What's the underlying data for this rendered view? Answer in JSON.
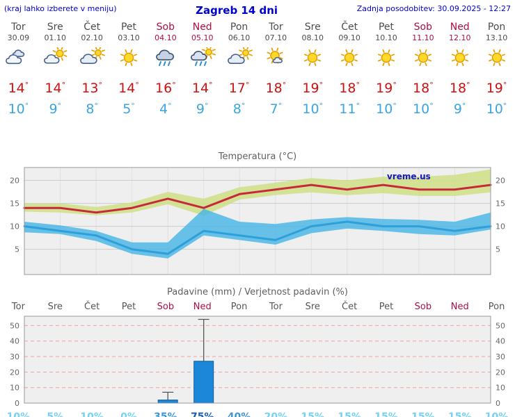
{
  "header": {
    "note": "(kraj lahko izberete v meniju)",
    "title": "Zagreb 14 dni",
    "updated": "Zadnja posodobitev: 30.09.2025 - 12:27"
  },
  "colors": {
    "accent_blue": "#0000cd",
    "temp_max_text": "#cc1111",
    "temp_min_text": "#3aa5e0",
    "weekend": "#b00d3f",
    "prob_low": "#74d2f0",
    "prob_mid": "#3d96d2",
    "prob_high": "#1a5cb0",
    "bar": "#1c86d8",
    "band_max": "#cfe08a",
    "band_min": "#45b4e6",
    "line_max": "#c62a39",
    "line_min": "#2e9fd8"
  },
  "days": [
    {
      "name": "Tor",
      "date": "30.09",
      "icon": "cloudy",
      "tmax": 14,
      "tmin": 10,
      "weekend": false,
      "precip_prob": 10
    },
    {
      "name": "Sre",
      "date": "01.10",
      "icon": "partly-cloudy",
      "tmax": 14,
      "tmin": 9,
      "weekend": false,
      "precip_prob": 5
    },
    {
      "name": "Čet",
      "date": "02.10",
      "icon": "mostly-cloudy",
      "tmax": 13,
      "tmin": 8,
      "weekend": false,
      "precip_prob": 10
    },
    {
      "name": "Pet",
      "date": "03.10",
      "icon": "sunny",
      "tmax": 14,
      "tmin": 5,
      "weekend": false,
      "precip_prob": 0
    },
    {
      "name": "Sob",
      "date": "04.10",
      "icon": "rain",
      "tmax": 16,
      "tmin": 4,
      "weekend": true,
      "precip_prob": 35
    },
    {
      "name": "Ned",
      "date": "05.10",
      "icon": "sun-rain",
      "tmax": 14,
      "tmin": 9,
      "weekend": true,
      "precip_prob": 75
    },
    {
      "name": "Pon",
      "date": "06.10",
      "icon": "mostly-cloudy",
      "tmax": 17,
      "tmin": 8,
      "weekend": false,
      "precip_prob": 40
    },
    {
      "name": "Tor",
      "date": "07.10",
      "icon": "mostly-sunny",
      "tmax": 18,
      "tmin": 7,
      "weekend": false,
      "precip_prob": 20
    },
    {
      "name": "Sre",
      "date": "08.10",
      "icon": "sunny",
      "tmax": 19,
      "tmin": 10,
      "weekend": false,
      "precip_prob": 15
    },
    {
      "name": "Čet",
      "date": "09.10",
      "icon": "sunny",
      "tmax": 18,
      "tmin": 11,
      "weekend": false,
      "precip_prob": 15
    },
    {
      "name": "Pet",
      "date": "10.10",
      "icon": "sunny",
      "tmax": 19,
      "tmin": 10,
      "weekend": false,
      "precip_prob": 15
    },
    {
      "name": "Sob",
      "date": "11.10",
      "icon": "sunny",
      "tmax": 18,
      "tmin": 10,
      "weekend": true,
      "precip_prob": 15
    },
    {
      "name": "Ned",
      "date": "12.10",
      "icon": "sunny",
      "tmax": 18,
      "tmin": 9,
      "weekend": true,
      "precip_prob": 15
    },
    {
      "name": "Pon",
      "date": "13.10",
      "icon": "sunny",
      "tmax": 19,
      "tmin": 10,
      "weekend": false,
      "precip_prob": 10
    }
  ],
  "chart_data": [
    {
      "type": "line",
      "title": "Temperatura (°C)",
      "watermark": "vreme.us",
      "categories": [
        "Tor 30.09",
        "Sre 01.10",
        "Čet 02.10",
        "Pet 03.10",
        "Sob 04.10",
        "Ned 05.10",
        "Pon 06.10",
        "Tor 07.10",
        "Sre 08.10",
        "Čet 09.10",
        "Pet 10.10",
        "Sob 11.10",
        "Ned 12.10",
        "Pon 13.10"
      ],
      "ylim": [
        -0.5,
        22.8
      ],
      "yticks": [
        5,
        10,
        15,
        20
      ],
      "grid": true,
      "band_colors": {
        "max": "#cfe08a",
        "min": "#45b4e6"
      },
      "series": [
        {
          "name": "tmax",
          "color": "#c62a39",
          "values": [
            14,
            14,
            13,
            14,
            16,
            14,
            17,
            18,
            19,
            18,
            19,
            18,
            18,
            19
          ]
        },
        {
          "name": "tmin",
          "color": "#2e9fd8",
          "values": [
            10,
            9,
            8,
            5,
            4,
            9,
            8,
            7,
            10,
            11,
            10,
            10,
            9,
            10
          ]
        },
        {
          "name": "tmax_range_upper",
          "values": [
            15,
            15,
            14.2,
            15.2,
            17.5,
            16,
            18.5,
            19.5,
            20.5,
            20,
            20.8,
            20.8,
            21.2,
            22.4
          ]
        },
        {
          "name": "tmax_range_lower",
          "values": [
            13.2,
            13,
            12.4,
            13,
            14.8,
            12.3,
            15.8,
            16.8,
            17.4,
            16.8,
            17.2,
            16.6,
            16.6,
            17.4
          ]
        },
        {
          "name": "tmin_range_upper",
          "values": [
            11,
            10.2,
            9,
            6.5,
            6.5,
            13.8,
            11,
            10.5,
            11.5,
            12,
            11.6,
            11.4,
            11,
            13
          ]
        },
        {
          "name": "tmin_range_lower",
          "values": [
            8.7,
            8.3,
            6.8,
            4,
            3,
            8,
            7,
            6,
            8.5,
            9.5,
            9,
            8.3,
            8,
            9.3
          ]
        }
      ]
    },
    {
      "type": "bar",
      "title": "Padavine (mm) / Verjetnost padavin (%)",
      "categories": [
        "Tor",
        "Sre",
        "Čet",
        "Pet",
        "Sob",
        "Ned",
        "Pon",
        "Tor",
        "Sre",
        "Čet",
        "Pet",
        "Sob",
        "Ned",
        "Pon"
      ],
      "ylim": [
        0,
        56
      ],
      "yticks": [
        0,
        10,
        20,
        30,
        40,
        50
      ],
      "grid": true,
      "bar_color": "#1c86d8",
      "values": [
        0,
        0,
        0,
        0,
        2,
        27,
        0,
        0,
        0,
        0,
        0,
        0,
        0,
        0
      ],
      "whisker_max": [
        0,
        0,
        0,
        0,
        7,
        54,
        0,
        0,
        0,
        0,
        0,
        0,
        0,
        0
      ],
      "probabilities": [
        10,
        5,
        10,
        0,
        35,
        75,
        40,
        20,
        15,
        15,
        15,
        15,
        15,
        10
      ]
    }
  ]
}
